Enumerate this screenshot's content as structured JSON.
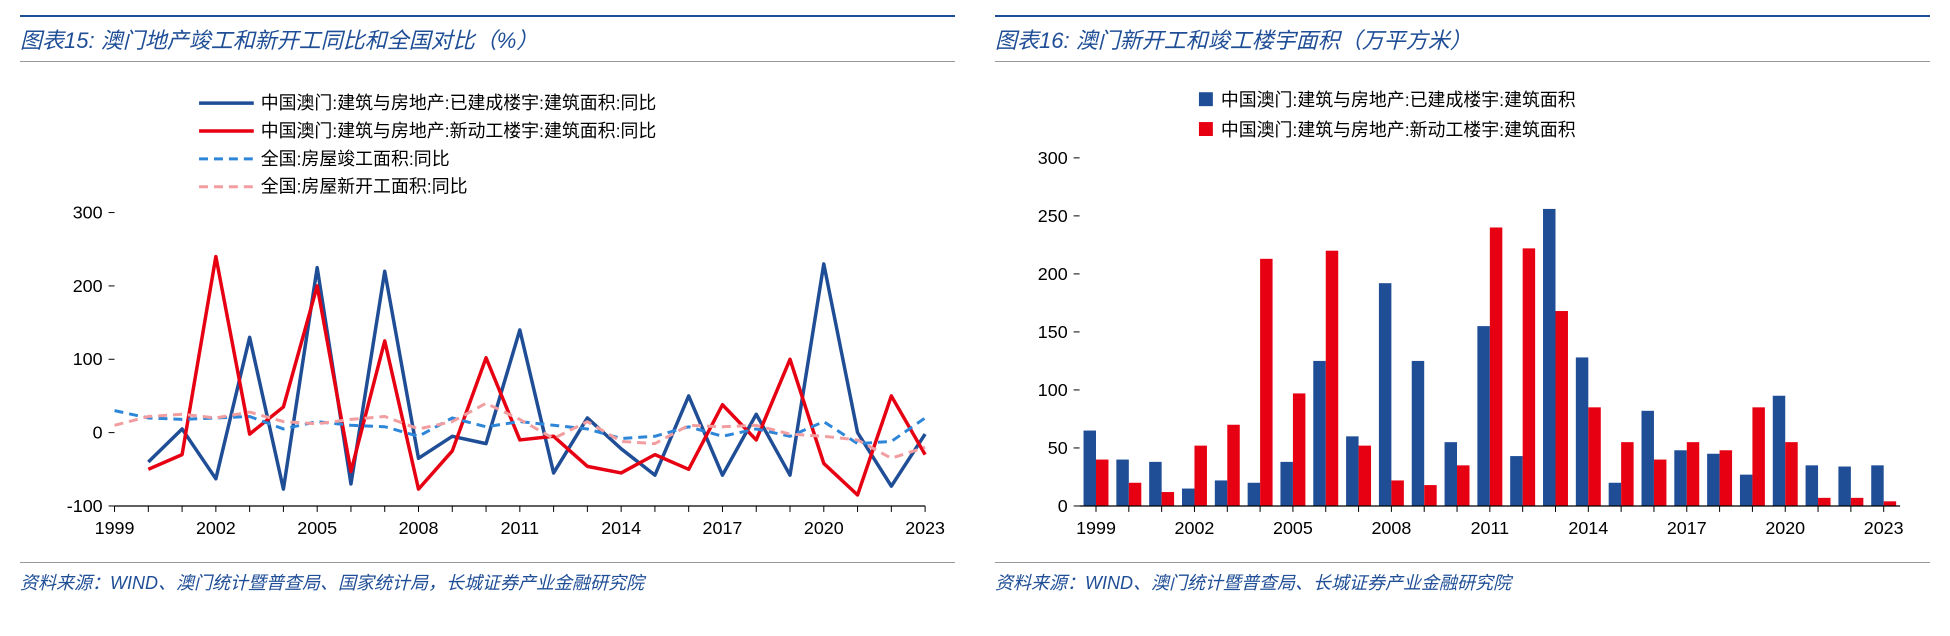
{
  "charts": [
    {
      "id": "left",
      "type": "line",
      "title_prefix": "图表15:",
      "title": "澳门地产竣工和新开工同比和全国对比（%）",
      "source": "资料来源：WIND、澳门统计暨普查局、国家统计局，长城证券产业金融研究院",
      "background_color": "#ffffff",
      "title_color": "#1f4e96",
      "title_fontsize": 22,
      "legend_fontsize": 18,
      "axis_fontsize": 18,
      "xlim": [
        1999,
        2023
      ],
      "ylim": [
        -100,
        300
      ],
      "ytick_step": 100,
      "xticks": [
        1999,
        2002,
        2005,
        2008,
        2011,
        2014,
        2017,
        2020,
        2023
      ],
      "line_width_solid": 3.5,
      "line_width_dash": 3,
      "dash_pattern": "9,6",
      "legend_position": "top-center",
      "series": [
        {
          "label": "中国澳门:建筑与房地产:已建成楼宇:建筑面积:同比",
          "color": "#1f4e96",
          "dash": false,
          "y": [
            null,
            -40,
            5,
            -63,
            130,
            -77,
            225,
            -70,
            220,
            -35,
            -5,
            -15,
            140,
            -55,
            20,
            -22,
            -58,
            50,
            -58,
            25,
            -58,
            230,
            0,
            -73,
            -2
          ]
        },
        {
          "label": "中国澳门:建筑与房地产:新动工楼宇:建筑面积:同比",
          "color": "#e60012",
          "dash": false,
          "y": [
            null,
            -50,
            -30,
            240,
            -2,
            35,
            200,
            -53,
            125,
            -77,
            -25,
            102,
            -10,
            -5,
            -46,
            -55,
            -30,
            -50,
            38,
            -10,
            100,
            -42,
            -85,
            50,
            -30
          ]
        },
        {
          "label": "全国:房屋竣工面积:同比",
          "color": "#2e86d9",
          "dash": true,
          "y": [
            30,
            20,
            18,
            20,
            22,
            5,
            15,
            10,
            8,
            -5,
            20,
            8,
            15,
            10,
            5,
            -8,
            -5,
            8,
            -5,
            5,
            -5,
            15,
            -15,
            -12,
            20
          ]
        },
        {
          "label": "全国:房屋新开工面积:同比",
          "color": "#f29da0",
          "dash": true,
          "y": [
            10,
            22,
            25,
            20,
            28,
            15,
            12,
            18,
            22,
            5,
            15,
            40,
            18,
            -8,
            15,
            -12,
            -15,
            10,
            8,
            10,
            -2,
            -5,
            -10,
            -35,
            -20
          ]
        }
      ]
    },
    {
      "id": "right",
      "type": "bar-grouped",
      "title_prefix": "图表16:",
      "title": "澳门新开工和竣工楼宇面积（万平方米）",
      "source": "资料来源：WIND、澳门统计暨普查局、长城证券产业金融研究院",
      "background_color": "#ffffff",
      "title_color": "#1f4e96",
      "title_fontsize": 22,
      "legend_fontsize": 18,
      "axis_fontsize": 18,
      "xlim": [
        1999,
        2023
      ],
      "ylim": [
        0,
        300
      ],
      "ytick_step": 50,
      "xticks": [
        1999,
        2002,
        2005,
        2008,
        2011,
        2014,
        2017,
        2020,
        2023
      ],
      "bar_width": 0.38,
      "legend_position": "top-center",
      "series": [
        {
          "label": "中国澳门:建筑与房地产:已建成楼宇:建筑面积",
          "color": "#1f4e96",
          "y": [
            65,
            40,
            38,
            15,
            22,
            20,
            38,
            125,
            60,
            192,
            125,
            55,
            155,
            43,
            256,
            128,
            20,
            82,
            48,
            45,
            27,
            95,
            35,
            34,
            35
          ]
        },
        {
          "label": "中国澳门:建筑与房地产:新动工楼宇:建筑面积",
          "color": "#e60012",
          "y": [
            40,
            20,
            12,
            52,
            70,
            213,
            97,
            220,
            52,
            22,
            18,
            35,
            240,
            222,
            168,
            85,
            55,
            40,
            55,
            48,
            85,
            55,
            7,
            7,
            4
          ]
        }
      ]
    }
  ]
}
